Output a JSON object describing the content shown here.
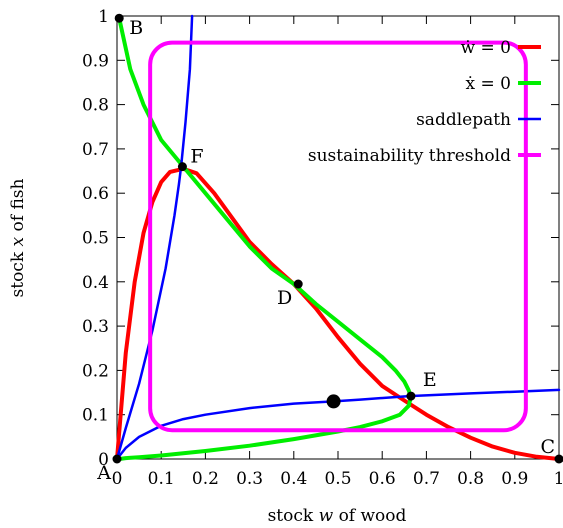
{
  "chart_data": {
    "type": "line",
    "xlabel": {
      "pre": "stock ",
      "var": "w",
      "post": " of wood"
    },
    "ylabel": {
      "pre": "stock ",
      "var": "x",
      "post": " of fish"
    },
    "xlim": [
      0,
      1
    ],
    "ylim": [
      0,
      1
    ],
    "x_ticks": [
      "0",
      "0.1",
      "0.2",
      "0.3",
      "0.4",
      "0.5",
      "0.6",
      "0.7",
      "0.8",
      "0.9",
      "1"
    ],
    "y_ticks": [
      "0",
      "0.1",
      "0.2",
      "0.3",
      "0.4",
      "0.5",
      "0.6",
      "0.7",
      "0.8",
      "0.9",
      "1"
    ],
    "grid": false,
    "legend_position": "top-right",
    "series": [
      {
        "name": "ẇ = 0",
        "color": "#ff0000",
        "x": [
          0,
          0.01,
          0.02,
          0.04,
          0.06,
          0.08,
          0.1,
          0.12,
          0.15,
          0.18,
          0.22,
          0.26,
          0.3,
          0.35,
          0.4,
          0.45,
          0.5,
          0.55,
          0.6,
          0.65,
          0.7,
          0.75,
          0.8,
          0.85,
          0.9,
          0.95,
          1.0
        ],
        "y": [
          0,
          0.12,
          0.24,
          0.4,
          0.51,
          0.58,
          0.625,
          0.648,
          0.655,
          0.645,
          0.6,
          0.545,
          0.49,
          0.44,
          0.395,
          0.34,
          0.275,
          0.215,
          0.165,
          0.132,
          0.1,
          0.072,
          0.048,
          0.028,
          0.014,
          0.005,
          0
        ]
      },
      {
        "name": "ẋ = 0",
        "color": "#00ee00",
        "x": [
          0.005,
          0.03,
          0.06,
          0.1,
          0.15,
          0.2,
          0.25,
          0.3,
          0.35,
          0.4,
          0.45,
          0.5,
          0.55,
          0.6,
          0.63,
          0.65,
          0.66,
          0.665,
          0.66,
          0.64,
          0.6,
          0.55,
          0.5,
          0.4,
          0.3,
          0.2,
          0.1,
          0.05,
          0.02,
          0.005
        ],
        "y": [
          0.995,
          0.88,
          0.8,
          0.72,
          0.66,
          0.6,
          0.54,
          0.48,
          0.43,
          0.395,
          0.35,
          0.31,
          0.27,
          0.23,
          0.2,
          0.175,
          0.155,
          0.14,
          0.12,
          0.1,
          0.085,
          0.072,
          0.062,
          0.045,
          0.03,
          0.018,
          0.008,
          0.004,
          0.002,
          0
        ]
      },
      {
        "name": "saddlepath",
        "color": "#0000ff",
        "x": [
          0,
          0.02,
          0.05,
          0.08,
          0.11,
          0.13,
          0.14,
          0.145,
          0.155,
          0.165,
          0.17
        ],
        "y": [
          0,
          0.07,
          0.17,
          0.29,
          0.43,
          0.55,
          0.62,
          0.66,
          0.76,
          0.88,
          1.0
        ]
      },
      {
        "name": "",
        "color": "#0000ff",
        "x": [
          0,
          0.02,
          0.05,
          0.1,
          0.15,
          0.2,
          0.3,
          0.4,
          0.49,
          0.55,
          0.66,
          0.8,
          0.9,
          1.0
        ],
        "y": [
          0,
          0.025,
          0.05,
          0.075,
          0.09,
          0.1,
          0.115,
          0.125,
          0.13,
          0.134,
          0.142,
          0.148,
          0.152,
          0.156
        ]
      },
      {
        "name": "sustainability threshold",
        "color": "#ff00ff",
        "shape": "rounded_rectangle",
        "x": [
          0.075,
          0.925
        ],
        "y": [
          0.065,
          0.94
        ]
      }
    ],
    "points": [
      {
        "label": "A",
        "x": 0,
        "y": 0,
        "marker": true,
        "label_pos": "below-left"
      },
      {
        "label": "B",
        "x": 0.005,
        "y": 0.995,
        "marker": true,
        "label_pos": "right-below"
      },
      {
        "label": "C",
        "x": 1,
        "y": 0,
        "marker": true,
        "label_pos": "above-left"
      },
      {
        "label": "D",
        "x": 0.41,
        "y": 0.395,
        "marker": true,
        "label_pos": "below-left"
      },
      {
        "label": "E",
        "x": 0.665,
        "y": 0.142,
        "marker": true,
        "label_pos": "above-right"
      },
      {
        "label": "F",
        "x": 0.148,
        "y": 0.66,
        "marker": true,
        "label_pos": "right"
      },
      {
        "label": "",
        "x": 0.49,
        "y": 0.13,
        "marker": true,
        "big": true
      }
    ]
  }
}
